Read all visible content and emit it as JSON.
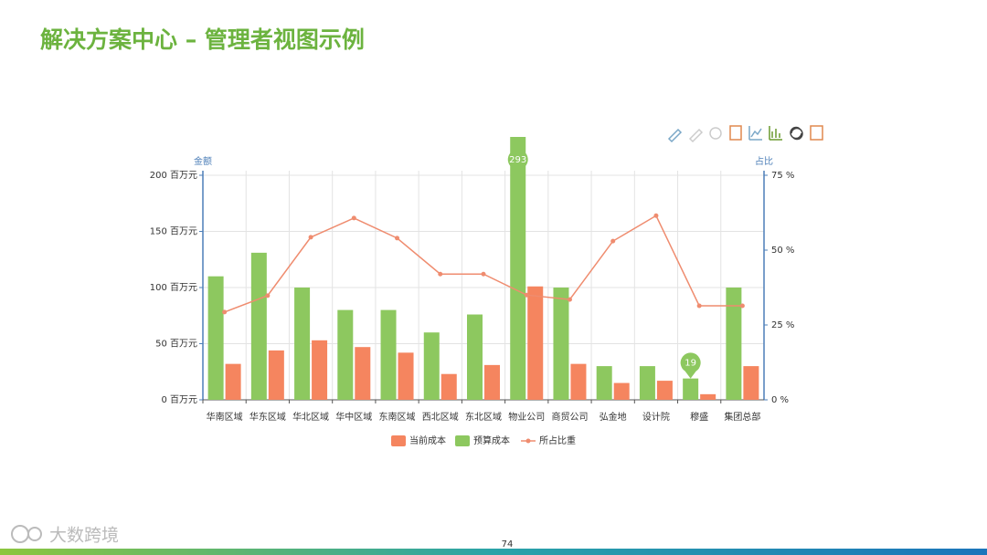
{
  "title": "解决方案中心 – 管理者视图示例",
  "page_number": "74",
  "logo": "大数跨境",
  "chart_data": {
    "type": "bar",
    "y_axis_label": "金额",
    "y2_axis_label": "占比",
    "categories": [
      "华南区域",
      "华东区域",
      "华北区域",
      "华中区域",
      "东南区域",
      "西北区域",
      "东北区域",
      "物业公司",
      "商贸公司",
      "弘金地",
      "设计院",
      "穆盛",
      "集团总部"
    ],
    "series": [
      {
        "name": "当前成本",
        "type": "bar",
        "color": "#f5855f",
        "values": [
          32,
          44,
          53,
          47,
          42,
          23,
          31,
          101,
          32,
          15,
          17,
          5,
          30
        ]
      },
      {
        "name": "预算成本",
        "type": "bar",
        "color": "#8dc85f",
        "values": [
          110,
          131,
          100,
          80,
          80,
          60,
          76,
          293,
          100,
          30,
          30,
          19,
          100
        ],
        "value_labels": [
          null,
          null,
          null,
          null,
          null,
          null,
          null,
          "293",
          null,
          null,
          null,
          "19",
          null
        ]
      },
      {
        "name": "所占比重",
        "type": "line",
        "axis": "y2",
        "color": "#ef8c6f",
        "values": [
          29.3,
          34.8,
          54.3,
          60.7,
          54,
          42,
          42,
          35,
          33.5,
          53,
          61.5,
          31.4,
          31.4
        ]
      }
    ],
    "ylim": [
      0,
      200
    ],
    "yticks": [
      {
        "value": 0,
        "label": "0 百万元"
      },
      {
        "value": 50,
        "label": "50 百万元"
      },
      {
        "value": 100,
        "label": "100 百万元"
      },
      {
        "value": 150,
        "label": "150 百万元"
      },
      {
        "value": 200,
        "label": "200 百万元"
      }
    ],
    "y2lim": [
      0,
      75
    ],
    "y2ticks": [
      {
        "value": 0,
        "label": "0 %"
      },
      {
        "value": 25,
        "label": "25 %"
      },
      {
        "value": 50,
        "label": "50 %"
      },
      {
        "value": 75,
        "label": "75 %"
      }
    ],
    "grid": true,
    "legend": "bottom"
  }
}
